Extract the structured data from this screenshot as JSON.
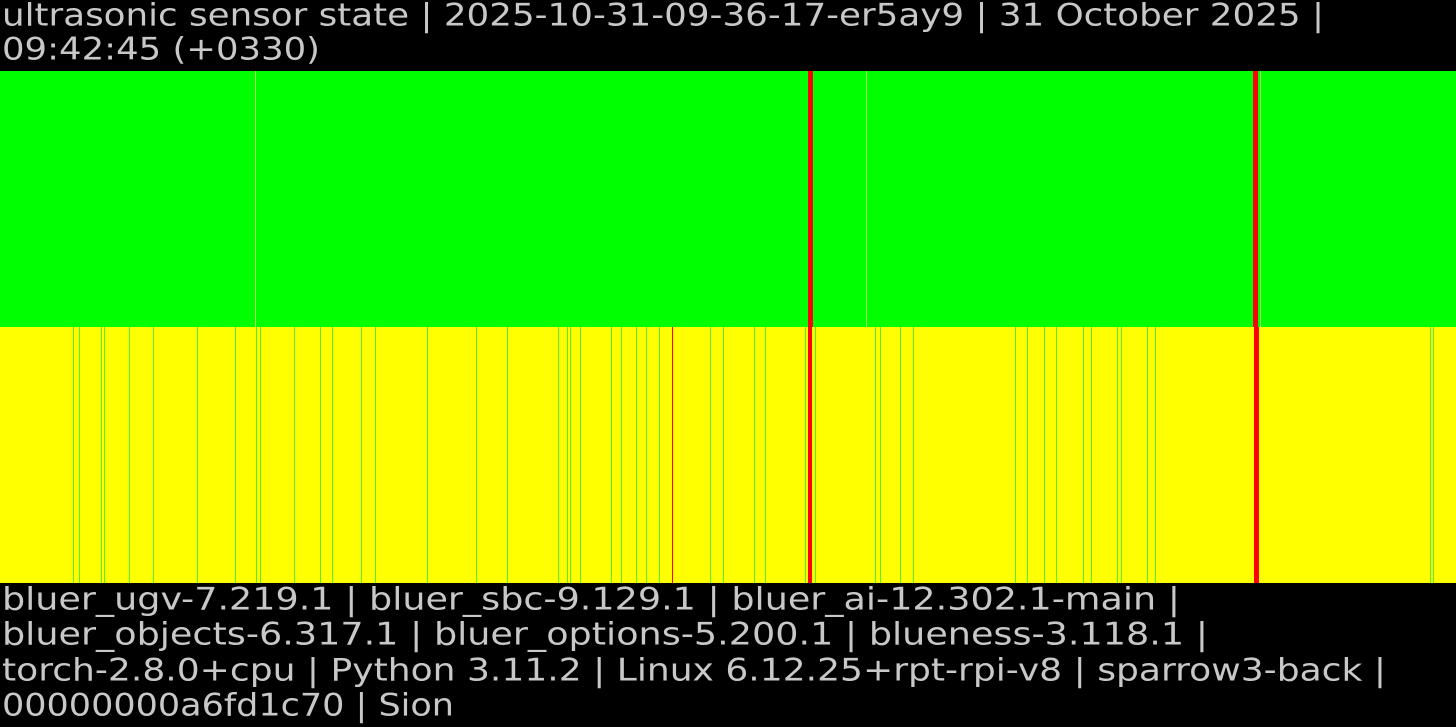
{
  "header": {
    "lines": [
      "ultrasonic sensor state | 2025-10-31-09-36-17-er5ay9 | 31 October 2025 |",
      "09:42:45 (+0330)"
    ]
  },
  "footer": {
    "lines": [
      "bluer_ugv-7.219.1 | bluer_sbc-9.129.1 | bluer_ai-12.302.1-main |",
      "bluer_objects-6.317.1 | bluer_options-5.200.1 | blueness-3.118.1 |",
      "torch-2.8.0+cpu | Python 3.11.2 | Linux 6.12.25+rpt-rpi-v8 | sparrow3-back |",
      "00000000a6fd1c70 | Sion"
    ]
  }
}
